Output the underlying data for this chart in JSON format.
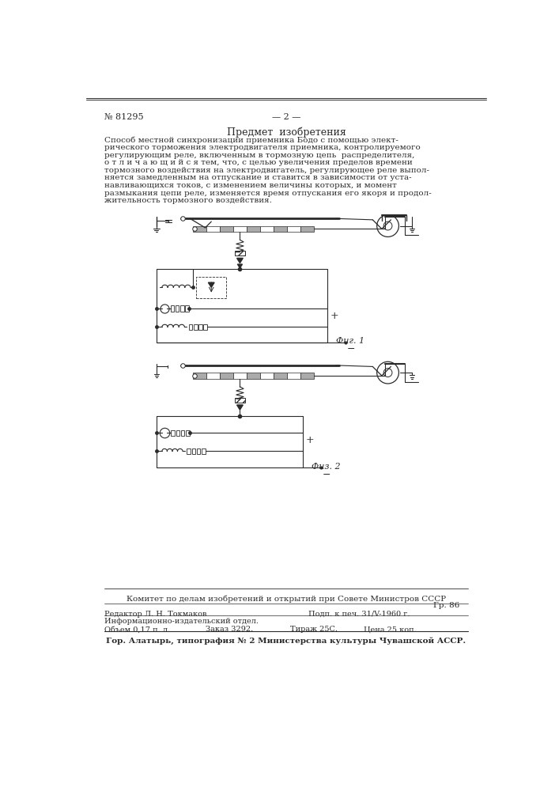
{
  "bg_color": "#ffffff",
  "text_color": "#2a2a2a",
  "patent_number": "№ 81295",
  "page_number": "— 2 —",
  "section_title": "Предмет  изобретения",
  "body_lines": [
    "Способ местной синхронизации приемника Бодо с помощью элект-",
    "рического торможения электродвигателя приемника, контролируемого",
    "регулирующим реле, включенным в тормозную цепь  распределителя,",
    "о т л и ч а ю щ и й с я тем, что, с целью увеличения пределов времени",
    "тормозного воздействия на электродвигатель, регулирующее реле выпол-",
    "няется замедленным на отпускание и ставится в зависимости от уста-",
    "навливающихся токов, с изменением величины которых, и момент",
    "размыкания цепи реле, изменяется время отпускания его якоря и продол-",
    "жительность тормозного воздействия."
  ],
  "fig1_label": "Фиг. 1",
  "fig2_label": "Физ. 2",
  "footer_committee": "Комитет по делам изобретений и открытий при Совете Министров СССР",
  "footer_gr": "Гр. 86",
  "footer_editor": "Редактор Л. Н. Токмаков",
  "footer_podp": "Подп. к печ. 31/V-1960 г.",
  "footer_info": "Информационно-издательский отдел.",
  "footer_obem": "Объем 0,17 п. л.",
  "footer_zakaz": "Заказ 3292.",
  "footer_tirazh": "Тираж 25С.",
  "footer_cena": "Цена 25 коп.",
  "footer_bottom": "Гор. Алатырь, типография № 2 Министерства культуры Чувашской АССР."
}
